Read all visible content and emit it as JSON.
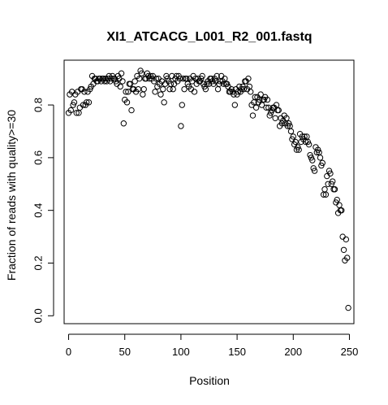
{
  "chart_data": {
    "type": "scatter",
    "title": "XI1_ATCACG_L001_R2_001.fastq",
    "xlabel": "Position",
    "ylabel": "Fraction of reads with quality>=30",
    "xlim": [
      -4,
      254
    ],
    "ylim": [
      -0.03,
      0.97
    ],
    "xticks": [
      0,
      50,
      100,
      150,
      200,
      250
    ],
    "yticks": [
      0.0,
      0.2,
      0.4,
      0.6,
      0.8
    ],
    "ytick_labels": [
      "0.0",
      "0.2",
      "0.4",
      "0.6",
      "0.8"
    ],
    "marker": "open-circle",
    "grid": false,
    "points": [
      [
        0,
        0.77
      ],
      [
        1,
        0.84
      ],
      [
        2,
        0.78
      ],
      [
        3,
        0.85
      ],
      [
        4,
        0.8
      ],
      [
        5,
        0.81
      ],
      [
        6,
        0.84
      ],
      [
        7,
        0.77
      ],
      [
        8,
        0.85
      ],
      [
        9,
        0.77
      ],
      [
        10,
        0.79
      ],
      [
        11,
        0.86
      ],
      [
        12,
        0.86
      ],
      [
        13,
        0.8
      ],
      [
        14,
        0.85
      ],
      [
        15,
        0.8
      ],
      [
        16,
        0.81
      ],
      [
        17,
        0.85
      ],
      [
        18,
        0.81
      ],
      [
        19,
        0.86
      ],
      [
        20,
        0.87
      ],
      [
        21,
        0.91
      ],
      [
        22,
        0.88
      ],
      [
        23,
        0.9
      ],
      [
        24,
        0.9
      ],
      [
        25,
        0.89
      ],
      [
        26,
        0.89
      ],
      [
        27,
        0.9
      ],
      [
        28,
        0.9
      ],
      [
        29,
        0.89
      ],
      [
        30,
        0.9
      ],
      [
        31,
        0.9
      ],
      [
        32,
        0.89
      ],
      [
        33,
        0.9
      ],
      [
        34,
        0.89
      ],
      [
        35,
        0.9
      ],
      [
        36,
        0.91
      ],
      [
        37,
        0.89
      ],
      [
        38,
        0.9
      ],
      [
        39,
        0.91
      ],
      [
        40,
        0.9
      ],
      [
        41,
        0.9
      ],
      [
        42,
        0.89
      ],
      [
        43,
        0.88
      ],
      [
        44,
        0.91
      ],
      [
        45,
        0.9
      ],
      [
        46,
        0.87
      ],
      [
        47,
        0.92
      ],
      [
        48,
        0.89
      ],
      [
        49,
        0.73
      ],
      [
        50,
        0.82
      ],
      [
        51,
        0.85
      ],
      [
        52,
        0.81
      ],
      [
        53,
        0.85
      ],
      [
        54,
        0.88
      ],
      [
        55,
        0.88
      ],
      [
        56,
        0.78
      ],
      [
        57,
        0.86
      ],
      [
        58,
        0.86
      ],
      [
        59,
        0.89
      ],
      [
        60,
        0.85
      ],
      [
        61,
        0.91
      ],
      [
        62,
        0.86
      ],
      [
        63,
        0.9
      ],
      [
        64,
        0.93
      ],
      [
        65,
        0.92
      ],
      [
        66,
        0.84
      ],
      [
        67,
        0.86
      ],
      [
        68,
        0.9
      ],
      [
        69,
        0.9
      ],
      [
        70,
        0.92
      ],
      [
        71,
        0.91
      ],
      [
        72,
        0.9
      ],
      [
        73,
        0.91
      ],
      [
        74,
        0.9
      ],
      [
        75,
        0.91
      ],
      [
        76,
        0.89
      ],
      [
        77,
        0.85
      ],
      [
        78,
        0.9
      ],
      [
        79,
        0.87
      ],
      [
        80,
        0.9
      ],
      [
        81,
        0.88
      ],
      [
        82,
        0.84
      ],
      [
        83,
        0.89
      ],
      [
        84,
        0.86
      ],
      [
        85,
        0.81
      ],
      [
        86,
        0.88
      ],
      [
        87,
        0.91
      ],
      [
        88,
        0.9
      ],
      [
        89,
        0.89
      ],
      [
        90,
        0.86
      ],
      [
        91,
        0.88
      ],
      [
        92,
        0.91
      ],
      [
        93,
        0.86
      ],
      [
        94,
        0.88
      ],
      [
        95,
        0.9
      ],
      [
        96,
        0.91
      ],
      [
        97,
        0.89
      ],
      [
        98,
        0.91
      ],
      [
        99,
        0.9
      ],
      [
        100,
        0.72
      ],
      [
        101,
        0.8
      ],
      [
        102,
        0.9
      ],
      [
        103,
        0.86
      ],
      [
        104,
        0.9
      ],
      [
        105,
        0.9
      ],
      [
        106,
        0.88
      ],
      [
        107,
        0.87
      ],
      [
        108,
        0.9
      ],
      [
        109,
        0.86
      ],
      [
        110,
        0.89
      ],
      [
        111,
        0.91
      ],
      [
        112,
        0.85
      ],
      [
        113,
        0.9
      ],
      [
        114,
        0.88
      ],
      [
        115,
        0.9
      ],
      [
        116,
        0.89
      ],
      [
        117,
        0.89
      ],
      [
        118,
        0.9
      ],
      [
        119,
        0.91
      ],
      [
        120,
        0.88
      ],
      [
        121,
        0.87
      ],
      [
        122,
        0.86
      ],
      [
        123,
        0.88
      ],
      [
        124,
        0.89
      ],
      [
        125,
        0.88
      ],
      [
        126,
        0.9
      ],
      [
        127,
        0.9
      ],
      [
        128,
        0.89
      ],
      [
        129,
        0.88
      ],
      [
        130,
        0.9
      ],
      [
        131,
        0.89
      ],
      [
        132,
        0.91
      ],
      [
        133,
        0.86
      ],
      [
        134,
        0.88
      ],
      [
        135,
        0.89
      ],
      [
        136,
        0.91
      ],
      [
        137,
        0.89
      ],
      [
        138,
        0.88
      ],
      [
        139,
        0.9
      ],
      [
        140,
        0.88
      ],
      [
        141,
        0.88
      ],
      [
        142,
        0.87
      ],
      [
        143,
        0.85
      ],
      [
        144,
        0.85
      ],
      [
        145,
        0.86
      ],
      [
        146,
        0.85
      ],
      [
        147,
        0.84
      ],
      [
        148,
        0.8
      ],
      [
        149,
        0.86
      ],
      [
        150,
        0.84
      ],
      [
        151,
        0.85
      ],
      [
        152,
        0.87
      ],
      [
        153,
        0.85
      ],
      [
        154,
        0.86
      ],
      [
        155,
        0.87
      ],
      [
        156,
        0.86
      ],
      [
        157,
        0.89
      ],
      [
        158,
        0.89
      ],
      [
        159,
        0.86
      ],
      [
        160,
        0.9
      ],
      [
        161,
        0.87
      ],
      [
        162,
        0.85
      ],
      [
        163,
        0.8
      ],
      [
        164,
        0.76
      ],
      [
        165,
        0.81
      ],
      [
        166,
        0.83
      ],
      [
        167,
        0.79
      ],
      [
        168,
        0.83
      ],
      [
        169,
        0.81
      ],
      [
        170,
        0.82
      ],
      [
        171,
        0.84
      ],
      [
        172,
        0.8
      ],
      [
        173,
        0.82
      ],
      [
        174,
        0.82
      ],
      [
        175,
        0.83
      ],
      [
        176,
        0.79
      ],
      [
        177,
        0.82
      ],
      [
        178,
        0.79
      ],
      [
        179,
        0.76
      ],
      [
        180,
        0.77
      ],
      [
        181,
        0.78
      ],
      [
        182,
        0.79
      ],
      [
        183,
        0.79
      ],
      [
        184,
        0.75
      ],
      [
        185,
        0.8
      ],
      [
        186,
        0.78
      ],
      [
        187,
        0.78
      ],
      [
        188,
        0.72
      ],
      [
        189,
        0.75
      ],
      [
        190,
        0.73
      ],
      [
        191,
        0.74
      ],
      [
        192,
        0.76
      ],
      [
        193,
        0.73
      ],
      [
        194,
        0.75
      ],
      [
        195,
        0.72
      ],
      [
        196,
        0.73
      ],
      [
        197,
        0.72
      ],
      [
        198,
        0.7
      ],
      [
        199,
        0.67
      ],
      [
        200,
        0.68
      ],
      [
        201,
        0.65
      ],
      [
        202,
        0.66
      ],
      [
        203,
        0.63
      ],
      [
        204,
        0.64
      ],
      [
        205,
        0.63
      ],
      [
        206,
        0.69
      ],
      [
        207,
        0.66
      ],
      [
        208,
        0.68
      ],
      [
        209,
        0.67
      ],
      [
        210,
        0.68
      ],
      [
        211,
        0.66
      ],
      [
        212,
        0.68
      ],
      [
        213,
        0.66
      ],
      [
        214,
        0.65
      ],
      [
        215,
        0.61
      ],
      [
        216,
        0.6
      ],
      [
        217,
        0.59
      ],
      [
        218,
        0.56
      ],
      [
        219,
        0.55
      ],
      [
        220,
        0.64
      ],
      [
        221,
        0.62
      ],
      [
        222,
        0.63
      ],
      [
        223,
        0.62
      ],
      [
        224,
        0.6
      ],
      [
        225,
        0.57
      ],
      [
        226,
        0.58
      ],
      [
        227,
        0.46
      ],
      [
        228,
        0.48
      ],
      [
        229,
        0.46
      ],
      [
        230,
        0.53
      ],
      [
        231,
        0.5
      ],
      [
        232,
        0.55
      ],
      [
        233,
        0.54
      ],
      [
        234,
        0.5
      ],
      [
        235,
        0.51
      ],
      [
        236,
        0.48
      ],
      [
        237,
        0.48
      ],
      [
        238,
        0.43
      ],
      [
        239,
        0.44
      ],
      [
        240,
        0.39
      ],
      [
        241,
        0.42
      ],
      [
        242,
        0.4
      ],
      [
        243,
        0.4
      ],
      [
        244,
        0.3
      ],
      [
        245,
        0.25
      ],
      [
        246,
        0.21
      ],
      [
        247,
        0.29
      ],
      [
        248,
        0.22
      ],
      [
        249,
        0.03
      ]
    ]
  }
}
